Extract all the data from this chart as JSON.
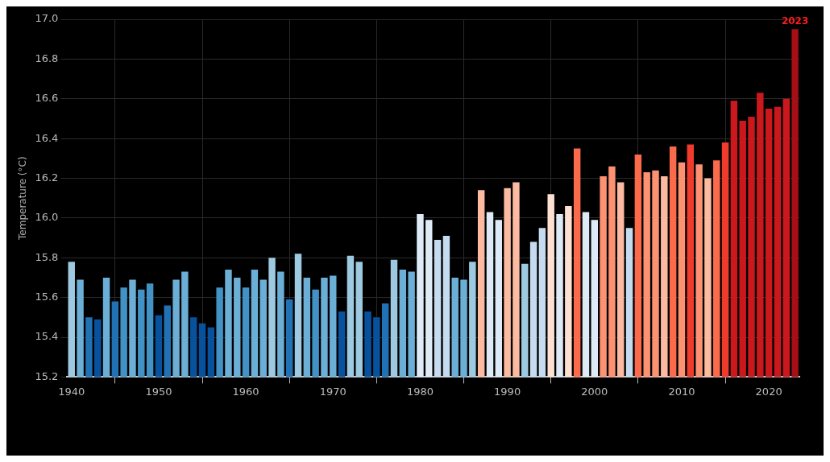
{
  "chart_data": {
    "type": "bar",
    "ylabel": "Temperature (°C)",
    "x": [
      1940,
      1941,
      1942,
      1943,
      1944,
      1945,
      1946,
      1947,
      1948,
      1949,
      1950,
      1951,
      1952,
      1953,
      1954,
      1955,
      1956,
      1957,
      1958,
      1959,
      1960,
      1961,
      1962,
      1963,
      1964,
      1965,
      1966,
      1967,
      1968,
      1969,
      1970,
      1971,
      1972,
      1973,
      1974,
      1975,
      1976,
      1977,
      1978,
      1979,
      1980,
      1981,
      1982,
      1983,
      1984,
      1985,
      1986,
      1987,
      1988,
      1989,
      1990,
      1991,
      1992,
      1993,
      1994,
      1995,
      1996,
      1997,
      1998,
      1999,
      2000,
      2001,
      2002,
      2003,
      2004,
      2005,
      2006,
      2007,
      2008,
      2009,
      2010,
      2011,
      2012,
      2013,
      2014,
      2015,
      2016,
      2017,
      2018,
      2019,
      2020,
      2021,
      2022,
      2023
    ],
    "values": [
      15.78,
      15.69,
      15.5,
      15.49,
      15.7,
      15.58,
      15.65,
      15.69,
      15.64,
      15.67,
      15.51,
      15.56,
      15.69,
      15.73,
      15.5,
      15.47,
      15.45,
      15.65,
      15.74,
      15.7,
      15.65,
      15.74,
      15.69,
      15.8,
      15.73,
      15.59,
      15.82,
      15.7,
      15.64,
      15.7,
      15.71,
      15.53,
      15.81,
      15.78,
      15.53,
      15.5,
      15.57,
      15.79,
      15.74,
      15.73,
      16.02,
      15.99,
      15.89,
      15.91,
      15.7,
      15.69,
      15.78,
      16.14,
      16.03,
      15.99,
      16.15,
      16.18,
      15.77,
      15.88,
      15.95,
      16.12,
      16.02,
      16.06,
      16.35,
      16.03,
      15.99,
      16.21,
      16.26,
      16.18,
      15.95,
      16.32,
      16.23,
      16.24,
      16.21,
      16.36,
      16.28,
      16.37,
      16.27,
      16.2,
      16.29,
      16.38,
      16.59,
      16.49,
      16.51,
      16.63,
      16.55,
      16.56,
      16.6,
      16.95
    ],
    "colors": [
      "#9ecae1",
      "#6baed6",
      "#2171b5",
      "#08519c",
      "#6baed6",
      "#2171b5",
      "#4292c6",
      "#6baed6",
      "#4292c6",
      "#4292c6",
      "#08519c",
      "#2171b5",
      "#6baed6",
      "#6baed6",
      "#08519c",
      "#08519c",
      "#08519c",
      "#4292c6",
      "#6baed6",
      "#6baed6",
      "#4292c6",
      "#6baed6",
      "#6baed6",
      "#9ecae1",
      "#6baed6",
      "#2171b5",
      "#9ecae1",
      "#6baed6",
      "#4292c6",
      "#6baed6",
      "#6baed6",
      "#08519c",
      "#9ecae1",
      "#9ecae1",
      "#08519c",
      "#08519c",
      "#2171b5",
      "#9ecae1",
      "#6baed6",
      "#6baed6",
      "#deebf7",
      "#deebf7",
      "#c6dbef",
      "#c6dbef",
      "#6baed6",
      "#6baed6",
      "#9ecae1",
      "#fcbba1",
      "#deebf7",
      "#deebf7",
      "#fcbba1",
      "#fcbba1",
      "#9ecae1",
      "#c6dbef",
      "#c6dbef",
      "#fee0d2",
      "#deebf7",
      "#fee0d2",
      "#fb6a4a",
      "#deebf7",
      "#deebf7",
      "#fc9272",
      "#fc9272",
      "#fcbba1",
      "#c6dbef",
      "#fb6a4a",
      "#fc9272",
      "#fc9272",
      "#fcbba1",
      "#fb6a4a",
      "#fc9272",
      "#ef3b2c",
      "#fc9272",
      "#fcbba1",
      "#fb6a4a",
      "#ef3b2c",
      "#cb181d",
      "#cb181d",
      "#cb181d",
      "#cb181d",
      "#cb181d",
      "#cb181d",
      "#cb181d",
      "#a50f15"
    ],
    "xlim": [
      1939.5,
      2023.5
    ],
    "xticks": [
      1940,
      1950,
      1960,
      1970,
      1980,
      1990,
      2000,
      2010,
      2020
    ],
    "ylim": [
      15.2,
      17.0
    ],
    "yticks": [
      15.2,
      15.4,
      15.6,
      15.8,
      {
        "value": 16,
        "label": "16.0"
      },
      16.2,
      16.4,
      16.6,
      16.8,
      {
        "value": 17,
        "label": "17.0"
      }
    ],
    "grid": true,
    "annotations": [
      {
        "text": "2023",
        "x": 2023,
        "y": 16.95
      }
    ]
  }
}
